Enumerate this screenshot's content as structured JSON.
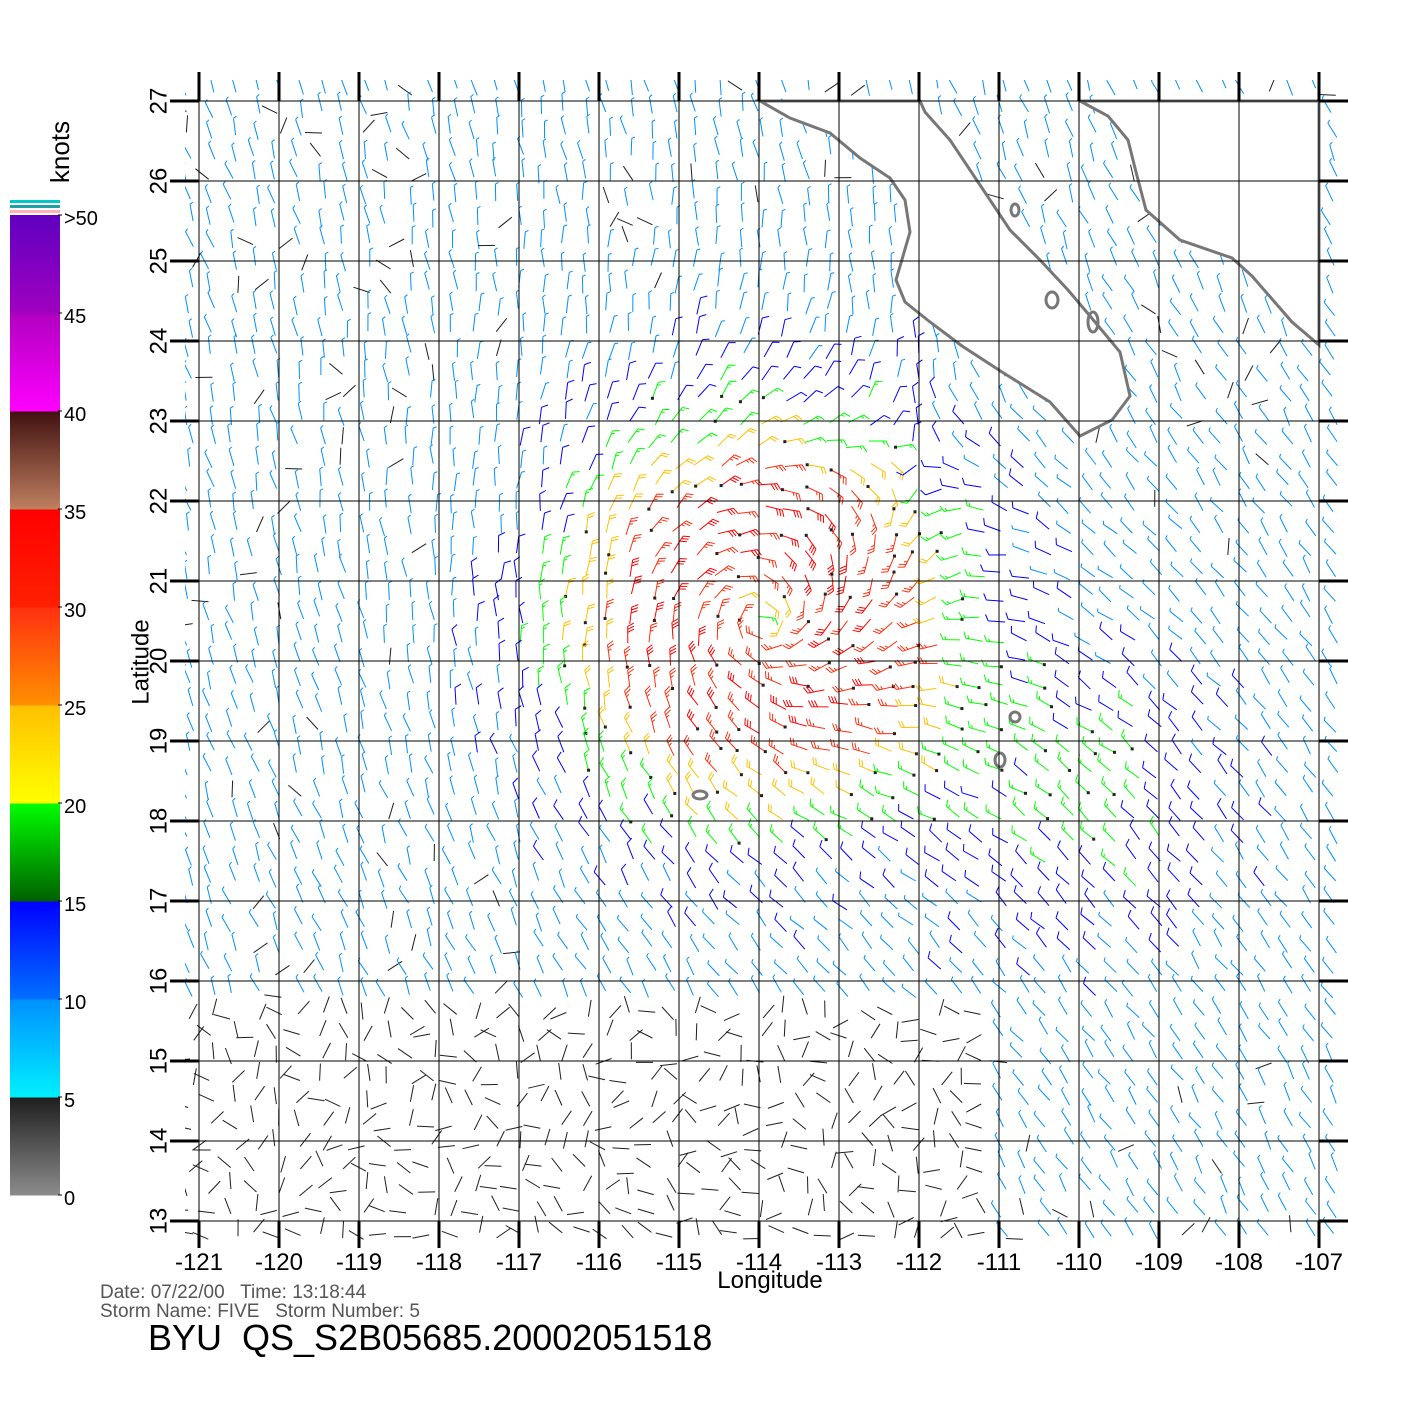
{
  "chart_data": {
    "type": "wind-barb-map",
    "xlabel": "Longitude",
    "ylabel": "Latitude",
    "xlim": [
      -121,
      -107
    ],
    "ylim": [
      13,
      27
    ],
    "xticks": [
      -121,
      -120,
      -119,
      -118,
      -117,
      -116,
      -115,
      -114,
      -113,
      -112,
      -111,
      -110,
      -109,
      -108,
      -107
    ],
    "yticks": [
      13,
      14,
      15,
      16,
      17,
      18,
      19,
      20,
      21,
      22,
      23,
      24,
      25,
      26,
      27
    ],
    "grid": true,
    "colorbar": {
      "label": "knots",
      "lim": [
        0,
        50
      ],
      "ticks": [
        0,
        5,
        10,
        15,
        20,
        25,
        30,
        35,
        40,
        {
          "value": 45,
          "label": "45"
        },
        {
          "value": 50,
          "label": ">50"
        }
      ],
      "band_colors": [
        [
          "#8c8c8c",
          "#1e1e1e"
        ],
        [
          "#00f0ff",
          "#0090ff"
        ],
        [
          "#0070ff",
          "#0000ff"
        ],
        [
          "#006000",
          "#00ff00"
        ],
        [
          "#ffff00",
          "#ffc000"
        ],
        [
          "#ff9000",
          "#ff3010"
        ],
        [
          "#ff2000",
          "#ff0000"
        ],
        [
          "#c08060",
          "#401010"
        ],
        [
          "#ff00ff",
          "#b000c0"
        ],
        [
          "#a000c0",
          "#6000c0"
        ]
      ]
    }
  },
  "footer": {
    "date_line": "Date: 07/22/00   Time: 13:18:44",
    "storm_line": "Storm Name: FIVE   Storm Number: 5",
    "product": "BYU  QS_S2B05685.20002051518"
  }
}
